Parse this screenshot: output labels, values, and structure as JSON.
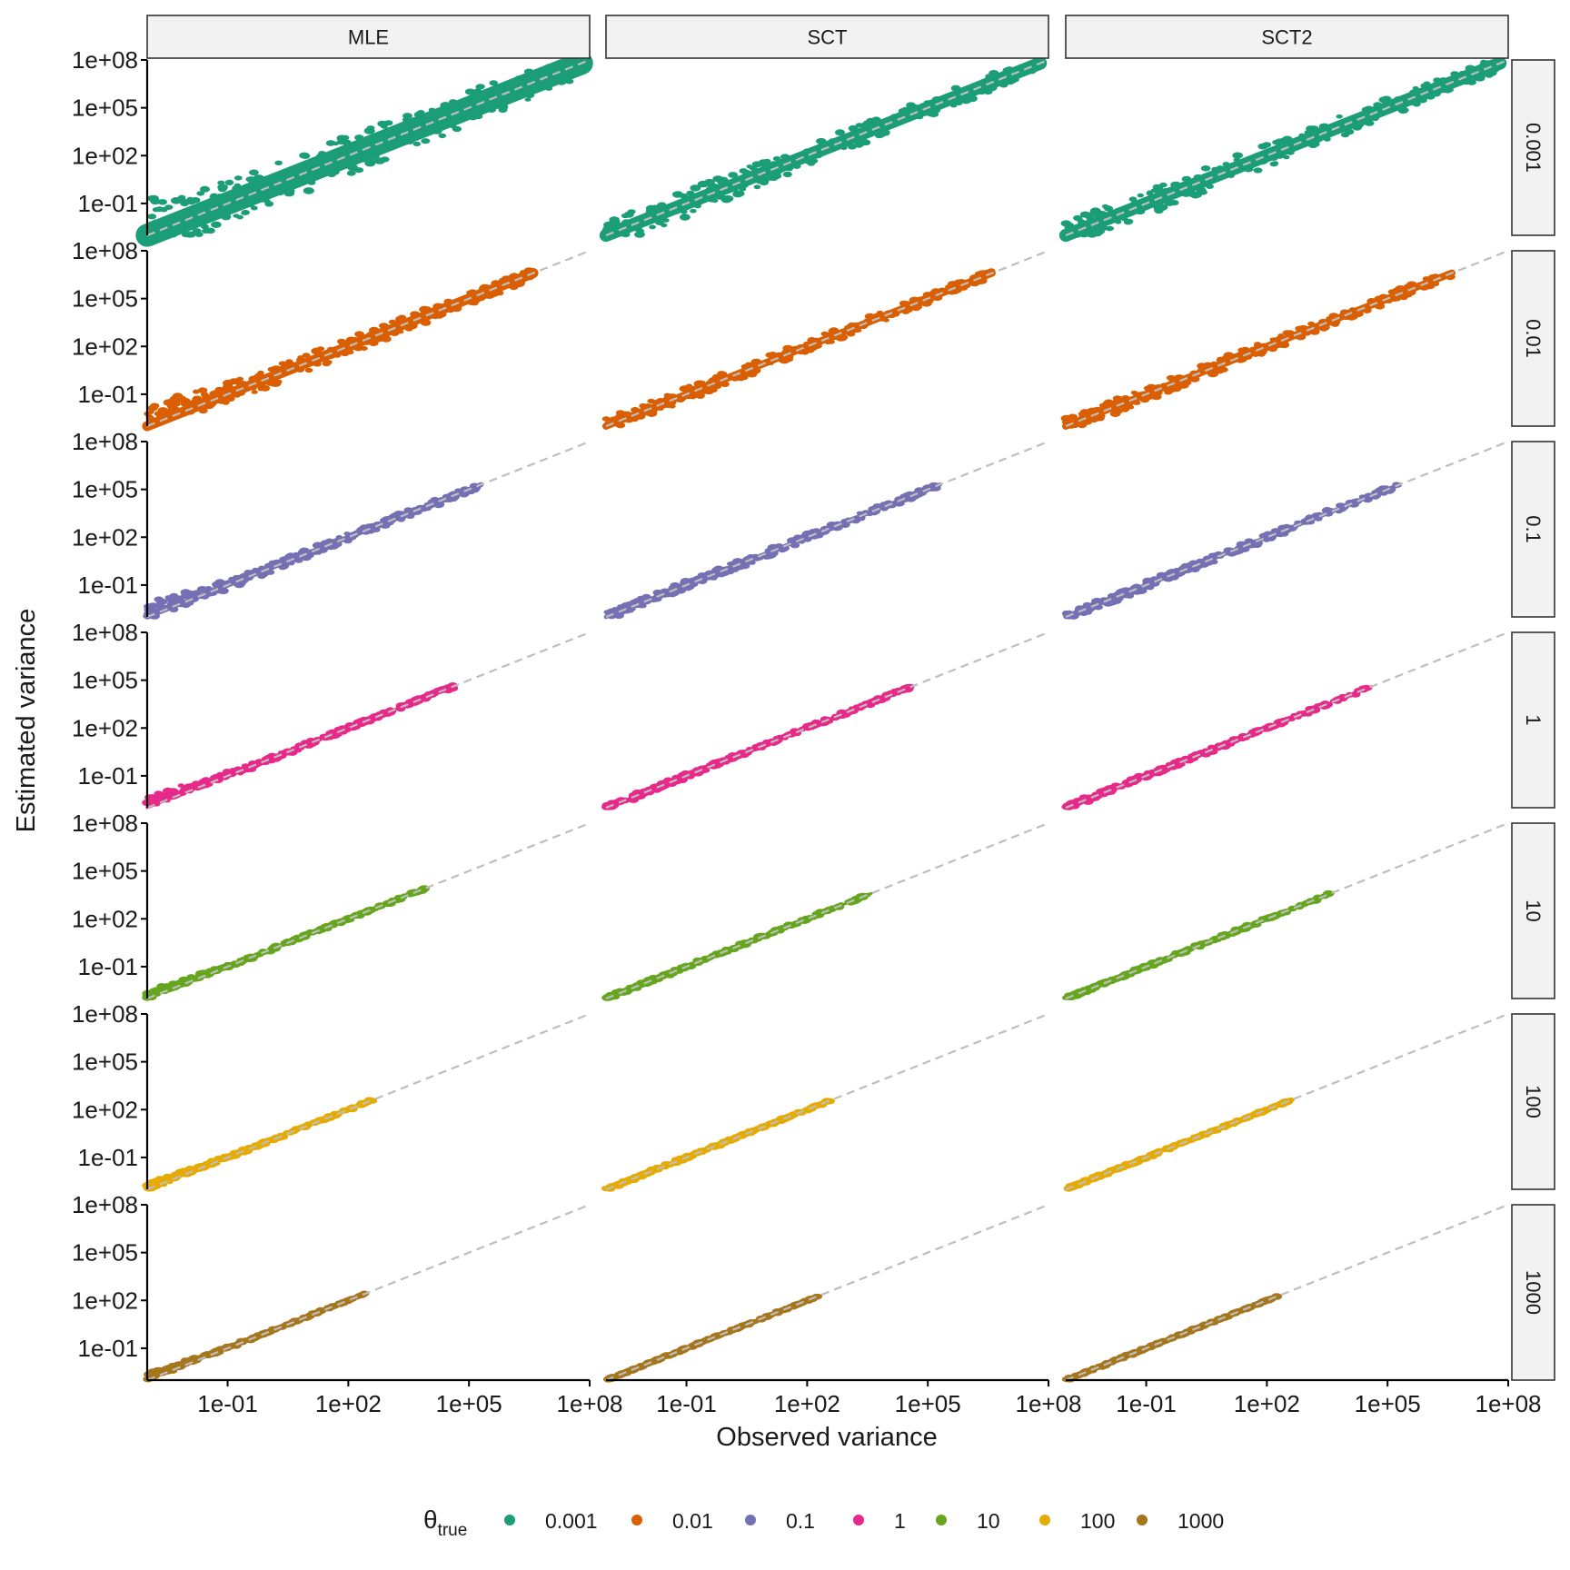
{
  "chart_data": {
    "type": "scatter",
    "xlabel": "Observed variance",
    "ylabel": "Estimated variance",
    "x_scale": "log10",
    "y_scale": "log10",
    "xlim": [
      0.001,
      100000000.0
    ],
    "ylim": [
      0.001,
      100000000.0
    ],
    "x_ticks": [
      0.1,
      100,
      100000,
      100000000
    ],
    "y_ticks": [
      0.1,
      100,
      100000,
      100000000
    ],
    "x_tick_labels": [
      "1e-01",
      "1e+02",
      "1e+05",
      "1e+08"
    ],
    "y_tick_labels": [
      "1e-01",
      "1e+02",
      "1e+05",
      "1e+08"
    ],
    "reference_line": {
      "type": "identity",
      "style": "dashed",
      "color": "#BEBEBE"
    },
    "grid": false,
    "columns": [
      "MLE",
      "SCT",
      "SCT2"
    ],
    "rows": [
      "0.001",
      "0.01",
      "0.1",
      "1",
      "10",
      "100",
      "1000"
    ],
    "colors": [
      "#1B9E77",
      "#D95F02",
      "#7570B3",
      "#E7298A",
      "#66A61E",
      "#E6AB02",
      "#A6761D"
    ],
    "legend": {
      "title_symbol": "θ",
      "title_subscript": "true",
      "placement": "bottom",
      "items": [
        "0.001",
        "0.01",
        "0.1",
        "1",
        "10",
        "100",
        "1000"
      ]
    },
    "panels": [
      {
        "row": "0.001",
        "column": "MLE",
        "x_range_log10": [
          -3,
          7.8
        ],
        "estimate_band_log10": 1.6,
        "low_x_excess_log10": 1.0
      },
      {
        "row": "0.001",
        "column": "SCT",
        "x_range_log10": [
          -3,
          7.8
        ],
        "estimate_band_log10": 0.9,
        "low_x_excess_log10": 0
      },
      {
        "row": "0.001",
        "column": "SCT2",
        "x_range_log10": [
          -3,
          7.8
        ],
        "estimate_band_log10": 0.9,
        "low_x_excess_log10": 0
      },
      {
        "row": "0.01",
        "column": "MLE",
        "x_range_log10": [
          -3,
          6.6
        ],
        "estimate_band_log10": 0.7,
        "low_x_excess_log10": 0.9
      },
      {
        "row": "0.01",
        "column": "SCT",
        "x_range_log10": [
          -3,
          6.6
        ],
        "estimate_band_log10": 0.5,
        "low_x_excess_log10": 0
      },
      {
        "row": "0.01",
        "column": "SCT2",
        "x_range_log10": [
          -3,
          6.6
        ],
        "estimate_band_log10": 0.5,
        "low_x_excess_log10": 0
      },
      {
        "row": "0.1",
        "column": "MLE",
        "x_range_log10": [
          -3,
          5.3
        ],
        "estimate_band_log10": 0.35,
        "low_x_excess_log10": 0.6
      },
      {
        "row": "0.1",
        "column": "SCT",
        "x_range_log10": [
          -3,
          5.3
        ],
        "estimate_band_log10": 0.3,
        "low_x_excess_log10": 0
      },
      {
        "row": "0.1",
        "column": "SCT2",
        "x_range_log10": [
          -3,
          5.3
        ],
        "estimate_band_log10": 0.3,
        "low_x_excess_log10": 0
      },
      {
        "row": "1",
        "column": "MLE",
        "x_range_log10": [
          -3,
          4.6
        ],
        "estimate_band_log10": 0.2,
        "low_x_excess_log10": 0.6
      },
      {
        "row": "1",
        "column": "SCT",
        "x_range_log10": [
          -3,
          4.6
        ],
        "estimate_band_log10": 0.18,
        "low_x_excess_log10": 0
      },
      {
        "row": "1",
        "column": "SCT2",
        "x_range_log10": [
          -3,
          4.6
        ],
        "estimate_band_log10": 0.18,
        "low_x_excess_log10": 0
      },
      {
        "row": "10",
        "column": "MLE",
        "x_range_log10": [
          -3,
          3.9
        ],
        "estimate_band_log10": 0.15,
        "low_x_excess_log10": 0.4
      },
      {
        "row": "10",
        "column": "SCT",
        "x_range_log10": [
          -3,
          3.6
        ],
        "estimate_band_log10": 0.12,
        "low_x_excess_log10": 0
      },
      {
        "row": "10",
        "column": "SCT2",
        "x_range_log10": [
          -3,
          3.6
        ],
        "estimate_band_log10": 0.12,
        "low_x_excess_log10": 0
      },
      {
        "row": "100",
        "column": "MLE",
        "x_range_log10": [
          -3,
          2.6
        ],
        "estimate_band_log10": 0.12,
        "low_x_excess_log10": 0.3
      },
      {
        "row": "100",
        "column": "SCT",
        "x_range_log10": [
          -3,
          2.6
        ],
        "estimate_band_log10": 0.1,
        "low_x_excess_log10": 0
      },
      {
        "row": "100",
        "column": "SCT2",
        "x_range_log10": [
          -3,
          2.6
        ],
        "estimate_band_log10": 0.1,
        "low_x_excess_log10": 0
      },
      {
        "row": "1000",
        "column": "MLE",
        "x_range_log10": [
          -3,
          2.4
        ],
        "estimate_band_log10": 0.08,
        "low_x_excess_log10": 0.4
      },
      {
        "row": "1000",
        "column": "SCT",
        "x_range_log10": [
          -3,
          2.3
        ],
        "estimate_band_log10": 0.06,
        "low_x_excess_log10": 0
      },
      {
        "row": "1000",
        "column": "SCT2",
        "x_range_log10": [
          -3,
          2.3
        ],
        "estimate_band_log10": 0.06,
        "low_x_excess_log10": 0
      }
    ]
  }
}
